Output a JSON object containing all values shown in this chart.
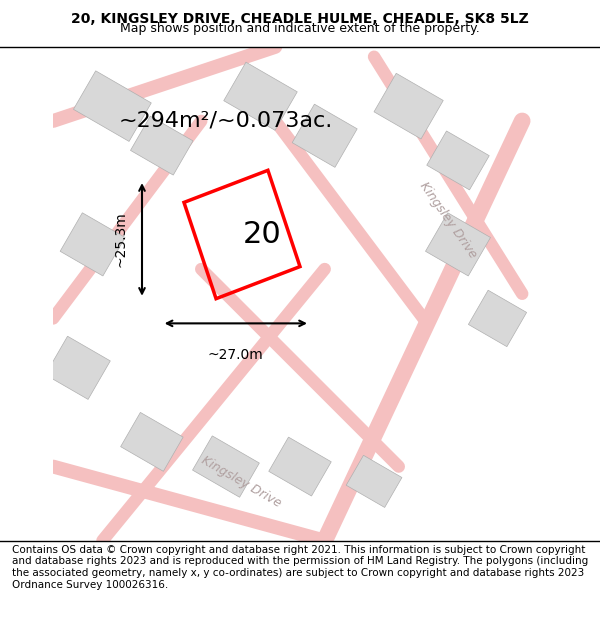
{
  "title": "20, KINGSLEY DRIVE, CHEADLE HULME, CHEADLE, SK8 5LZ",
  "subtitle": "Map shows position and indicative extent of the property.",
  "footer": "Contains OS data © Crown copyright and database right 2021. This information is subject to Crown copyright and database rights 2023 and is reproduced with the permission of HM Land Registry. The polygons (including the associated geometry, namely x, y co-ordinates) are subject to Crown copyright and database rights 2023 Ordnance Survey 100026316.",
  "area_text": "~294m²/~0.073ac.",
  "width_text": "~27.0m",
  "height_text": "~25.3m",
  "house_number": "20",
  "bg_color": "#f0eeee",
  "map_bg": "#f0eeee",
  "road_color": "#f5c0c0",
  "building_color": "#d8d8d8",
  "plot_color": "#ff0000",
  "road_label1": "Kingsley Drive",
  "road_label2": "Kingsley Drive",
  "title_fontsize": 10,
  "subtitle_fontsize": 9,
  "footer_fontsize": 7.5
}
